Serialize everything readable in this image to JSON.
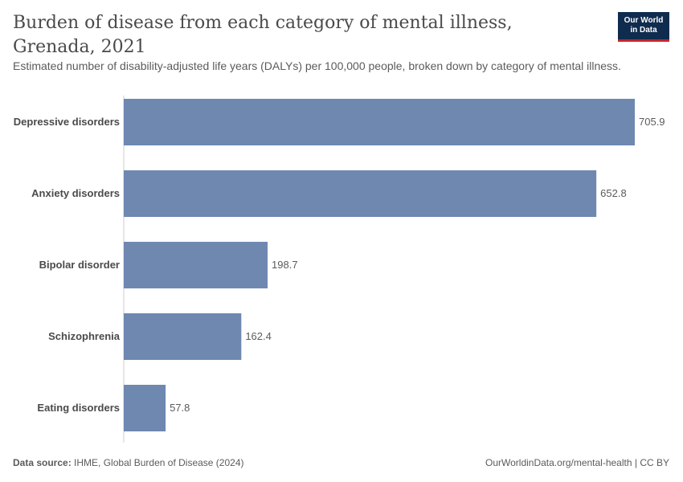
{
  "header": {
    "title": "Burden of disease from each category of mental illness, Grenada, 2021",
    "subtitle": "Estimated number of disability-adjusted life years (DALYs) per 100,000 people, broken down by category of mental illness."
  },
  "logo": {
    "line1": "Our World",
    "line2": "in Data"
  },
  "footer": {
    "source_label": "Data source:",
    "source_text": "IHME, Global Burden of Disease (2024)",
    "right_text": "OurWorldinData.org/mental-health | CC BY"
  },
  "colors": {
    "bar": "#6e88b0",
    "axis": "#cccccc",
    "label": "#4a4a4a",
    "value": "#5b5b5b"
  },
  "chart_data": {
    "type": "bar",
    "orientation": "horizontal",
    "categories": [
      "Depressive disorders",
      "Anxiety disorders",
      "Bipolar disorder",
      "Schizophrenia",
      "Eating disorders"
    ],
    "values": [
      705.9,
      652.8,
      198.7,
      162.4,
      57.8
    ],
    "value_labels": [
      "705.9",
      "652.8",
      "198.7",
      "162.4",
      "57.8"
    ],
    "xlim": [
      0,
      705.9
    ],
    "grid": false,
    "legend": "none"
  }
}
